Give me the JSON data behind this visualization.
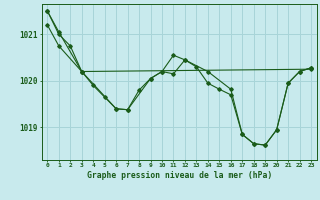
{
  "title": "Graphe pression niveau de la mer (hPa)",
  "bg_color": "#c8eaed",
  "grid_color": "#a8d4d8",
  "line_color": "#1a5c1a",
  "xlim": [
    -0.5,
    23.5
  ],
  "ylim": [
    1018.3,
    1021.65
  ],
  "yticks": [
    1019,
    1020,
    1021
  ],
  "xticks": [
    0,
    1,
    2,
    3,
    4,
    5,
    6,
    7,
    8,
    9,
    10,
    11,
    12,
    13,
    14,
    15,
    16,
    17,
    18,
    19,
    20,
    21,
    22,
    23
  ],
  "series1_x": [
    0,
    1,
    2,
    3,
    4,
    5,
    6,
    7,
    8,
    9,
    10,
    11,
    12,
    13,
    14,
    15,
    16,
    17,
    18,
    19,
    20,
    21,
    22,
    23
  ],
  "series1_y": [
    1021.5,
    1021.0,
    1020.75,
    1020.2,
    1019.9,
    1019.65,
    1019.4,
    1019.38,
    1019.8,
    1020.05,
    1020.2,
    1020.15,
    1020.45,
    1020.3,
    1019.95,
    1019.82,
    1019.7,
    1018.85,
    1018.65,
    1018.62,
    1018.95,
    1019.95,
    1020.2,
    1020.28
  ],
  "series2_x": [
    0,
    1,
    3,
    6,
    7,
    9,
    10,
    11,
    12,
    14,
    16,
    17,
    18,
    19,
    20,
    21,
    22,
    23
  ],
  "series2_y": [
    1021.5,
    1021.05,
    1020.2,
    1019.4,
    1019.38,
    1020.05,
    1020.2,
    1020.55,
    1020.45,
    1020.2,
    1019.82,
    1018.85,
    1018.65,
    1018.62,
    1018.95,
    1019.95,
    1020.2,
    1020.28
  ],
  "series3_x": [
    0,
    1,
    3,
    23
  ],
  "series3_y": [
    1021.2,
    1020.75,
    1020.2,
    1020.25
  ]
}
